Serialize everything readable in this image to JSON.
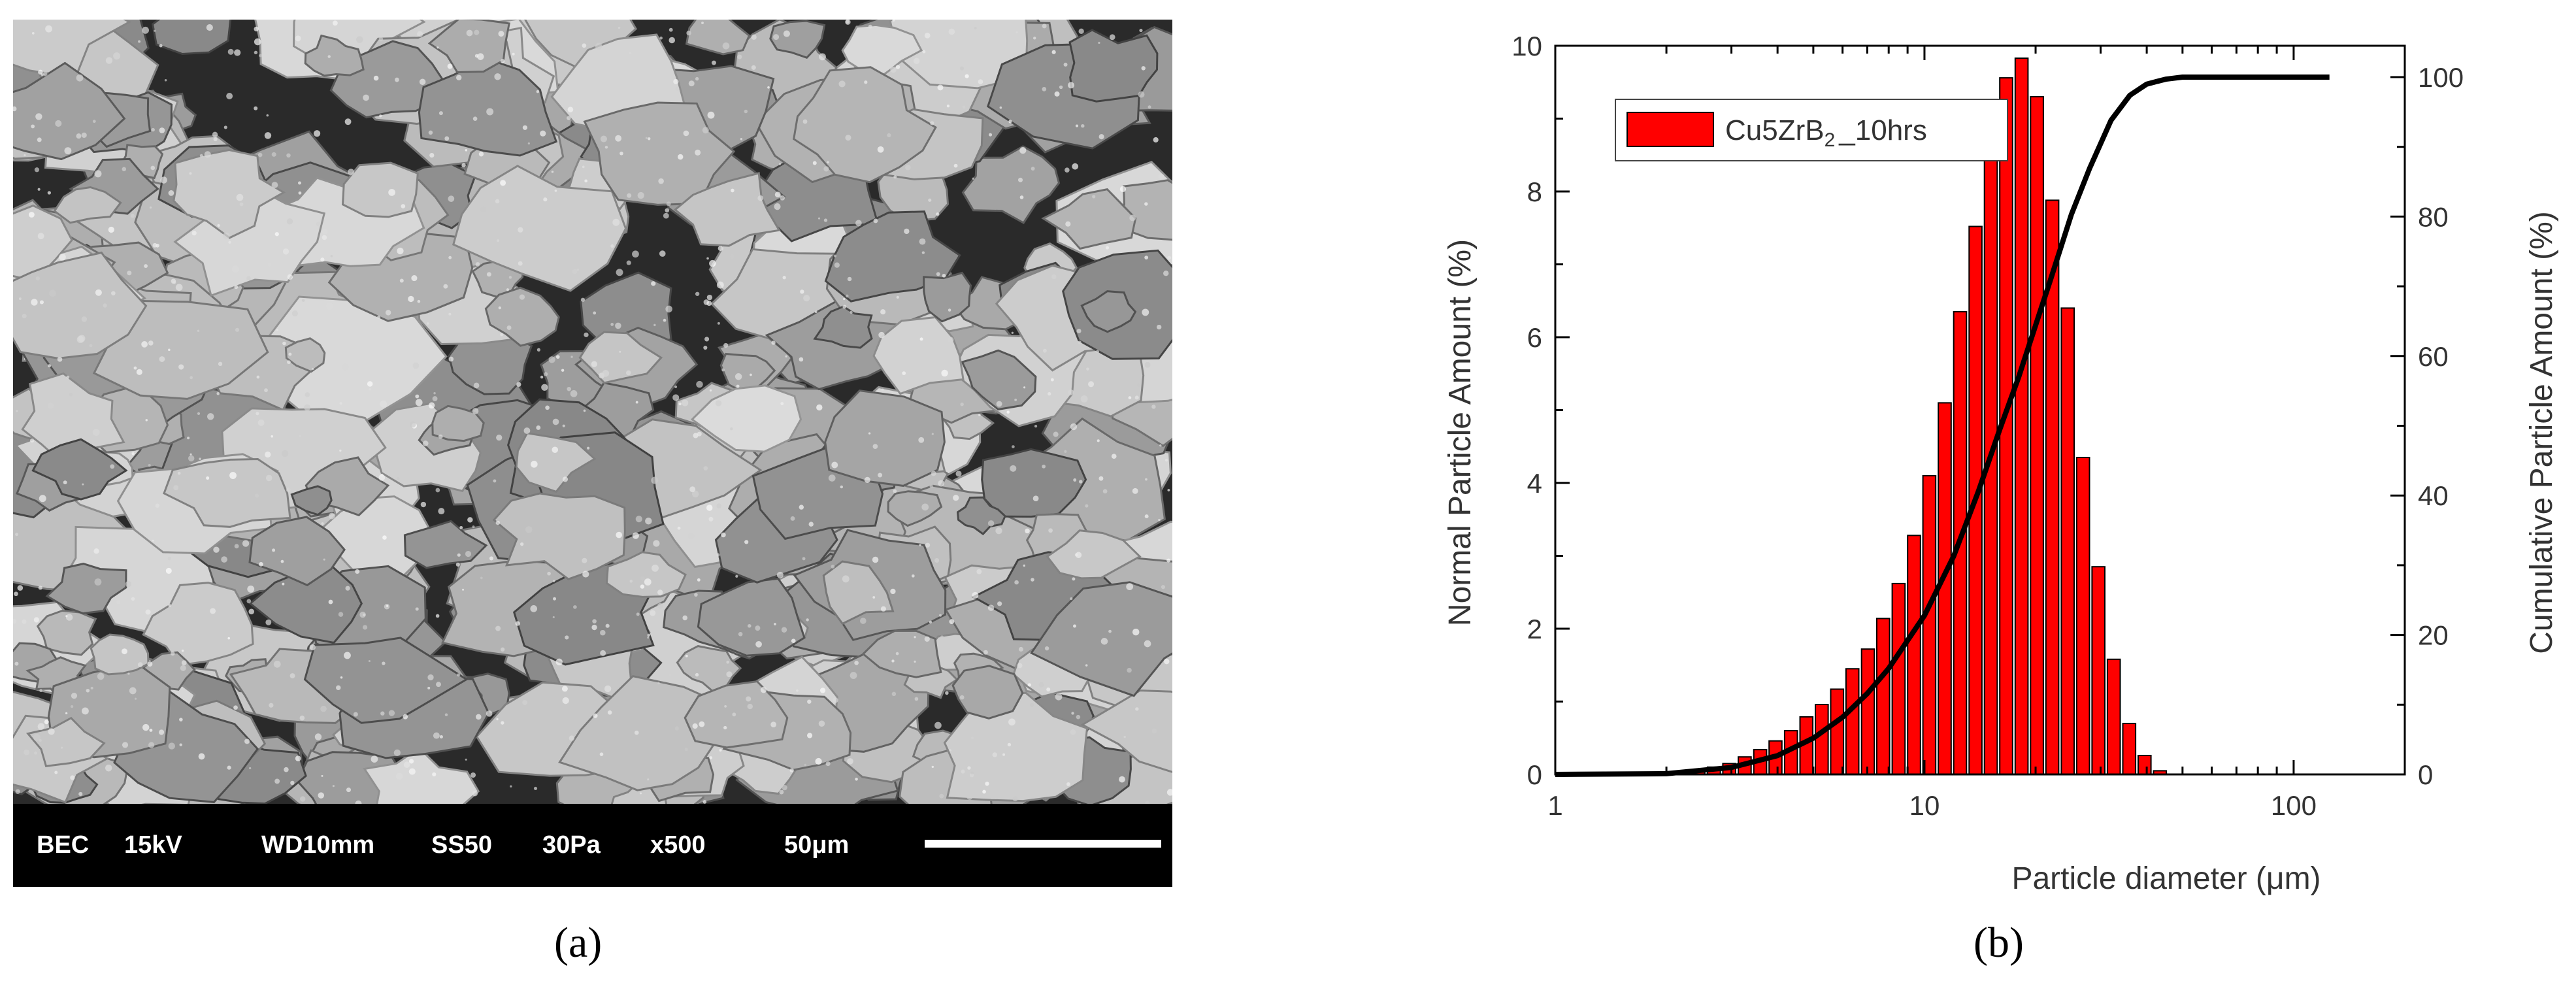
{
  "panel_a": {
    "image_description": "SEM micrograph of flaky powder particles",
    "info_bar": {
      "mode": "BEC",
      "voltage": "15kV",
      "working_distance": "WD10mm",
      "spot_size": "SS50",
      "pressure": "30Pa",
      "magnification": "x500",
      "scale_label": "50μm"
    },
    "caption": "(a)"
  },
  "panel_b": {
    "caption": "(b)"
  },
  "chart_data": {
    "type": "bar",
    "title": "",
    "xlabel": "Particle diameter (μm)",
    "ylabel": "Normal Particle Amount (%)",
    "y2label": "Cumulative Particle Amount (%)",
    "xscale": "log",
    "xlim": [
      1,
      200
    ],
    "ylim": [
      0,
      10
    ],
    "y2lim": [
      0,
      104.5
    ],
    "x_ticks": [
      "1",
      "10",
      "100"
    ],
    "y_ticks": [
      "0",
      "2",
      "4",
      "6",
      "8",
      "10"
    ],
    "y2_ticks": [
      "0",
      "20",
      "40",
      "60",
      "80",
      "100"
    ],
    "legend": {
      "label_main": "Cu5ZrB",
      "label_sub": "2",
      "label_suffix": "_10hrs",
      "placement": "top-left",
      "color": "#ff0000"
    },
    "series": [
      {
        "name": "Cu5ZrB2_10hrs",
        "kind": "histogram",
        "color": "#ff0000",
        "x": [
          2.22,
          2.44,
          2.69,
          2.96,
          3.26,
          3.59,
          3.95,
          4.35,
          4.79,
          5.27,
          5.8,
          6.38,
          7.03,
          7.73,
          8.51,
          9.37,
          10.31,
          11.35,
          12.49,
          13.75,
          15.13,
          16.65,
          18.33,
          20.17,
          22.2,
          24.44,
          26.9,
          29.6,
          32.58,
          35.86,
          39.47,
          43.44,
          47.81,
          52.62,
          57.92
        ],
        "values": [
          0.02,
          0.05,
          0.1,
          0.15,
          0.24,
          0.34,
          0.46,
          0.6,
          0.79,
          0.96,
          1.17,
          1.45,
          1.72,
          2.14,
          2.62,
          3.28,
          4.1,
          5.1,
          6.35,
          7.52,
          8.9,
          9.56,
          9.83,
          9.3,
          7.88,
          6.4,
          4.35,
          2.85,
          1.58,
          0.7,
          0.26,
          0.05,
          0.0,
          0.0,
          0.0
        ]
      },
      {
        "name": "Cumulative",
        "kind": "line",
        "axis": "right",
        "color": "#000000",
        "x": [
          1,
          2,
          3,
          4,
          5,
          6,
          7,
          8,
          10,
          12,
          14,
          16,
          18,
          20,
          22,
          25,
          28,
          32,
          36,
          40,
          45,
          50,
          60,
          80,
          100,
          125
        ],
        "values": [
          0.0,
          0.1,
          1.0,
          2.7,
          5.2,
          8.2,
          11.6,
          15.2,
          22.8,
          31.3,
          40.6,
          49.5,
          57.0,
          64.4,
          71.1,
          80.3,
          86.9,
          93.8,
          97.4,
          99.0,
          99.7,
          100.0,
          100.0,
          100.0,
          100.0,
          100.0
        ]
      }
    ]
  }
}
